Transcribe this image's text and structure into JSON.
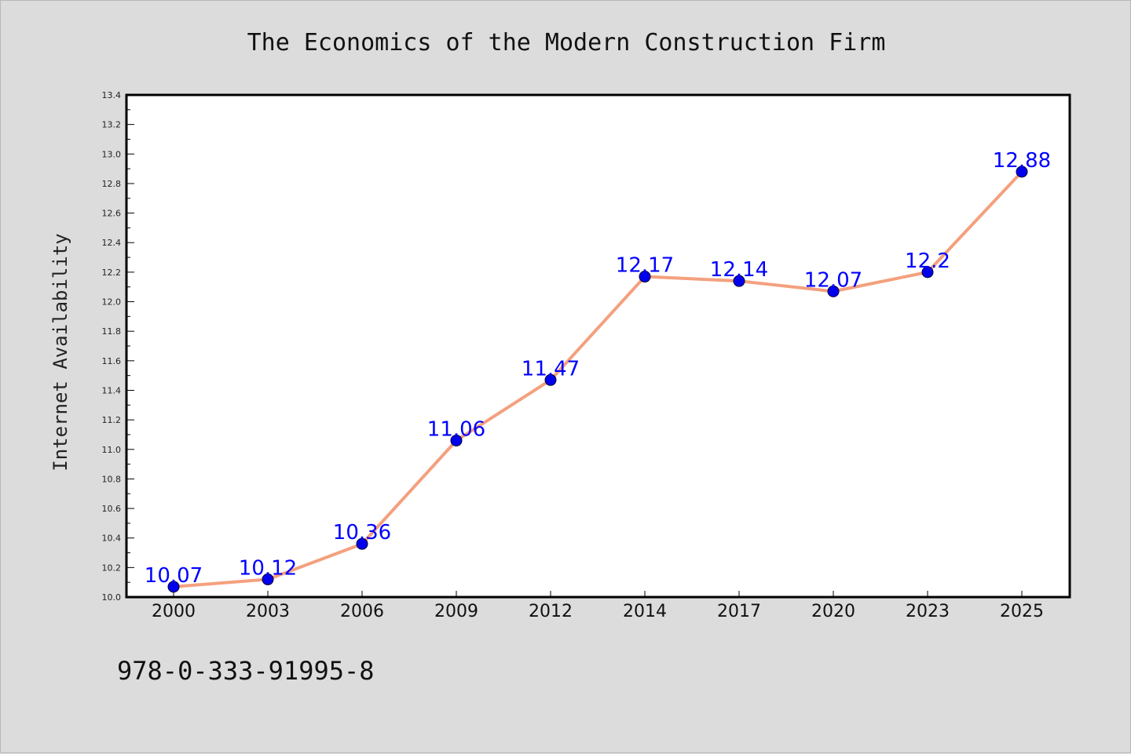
{
  "chart_data": {
    "type": "line",
    "title": "The Economics of the Modern Construction Firm",
    "xlabel": "",
    "ylabel": "Internet Availability",
    "categories": [
      "2000",
      "2003",
      "2006",
      "2009",
      "2012",
      "2014",
      "2017",
      "2020",
      "2023",
      "2025"
    ],
    "series": [
      {
        "values": [
          10.07,
          10.12,
          10.36,
          11.06,
          11.47,
          12.17,
          12.14,
          12.07,
          12.2,
          12.88
        ],
        "labels": [
          "10.07",
          "10.12",
          "10.36",
          "11.06",
          "11.47",
          "12.17",
          "12.14",
          "12.07",
          "12.2",
          "12.88"
        ]
      }
    ],
    "ylim": [
      10.0,
      13.4
    ],
    "yticks": [
      "10.0",
      "10.2",
      "10.4",
      "10.6",
      "10.8",
      "11.0",
      "11.2",
      "11.4",
      "11.6",
      "11.8",
      "12.0",
      "12.2",
      "12.4",
      "12.6",
      "12.8",
      "13.0",
      "13.2",
      "13.4"
    ],
    "grid": false,
    "line_color": "#f4a07e",
    "marker_color": "#0000ee",
    "label_color": "#0000ff"
  },
  "footer": {
    "isbn": "978-0-333-91995-8"
  }
}
